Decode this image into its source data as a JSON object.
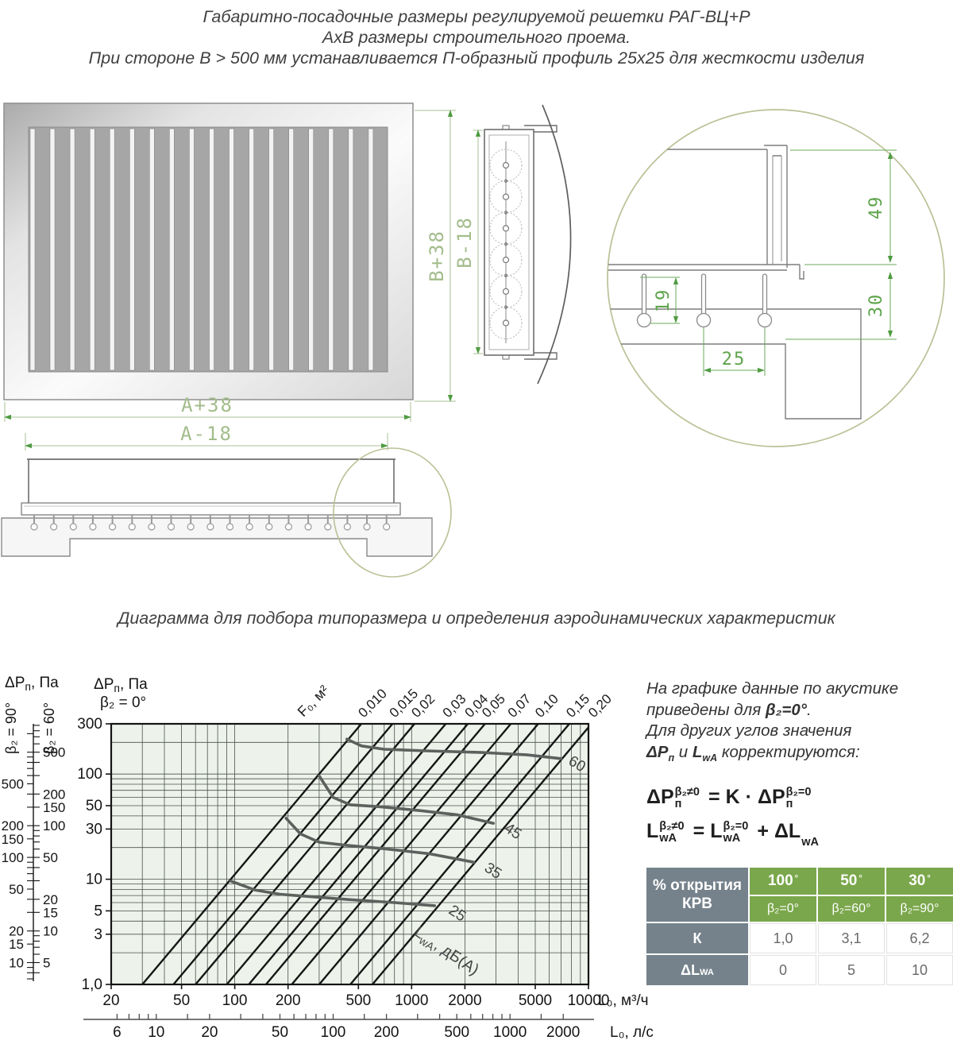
{
  "header": {
    "line1": "Габаритно-посадочные размеры регулируемой решетки РАГ-ВЦ+Р",
    "line2": "АхВ размеры строительного проема.",
    "line3": "При стороне В > 500 мм устанавливается П-образный профиль 25х25 для жесткости изделия"
  },
  "section_title": "Диаграмма для подбора типоразмера и определения аэродинамических характеристик",
  "drawings": {
    "slat_count": 18,
    "pin_count": 19,
    "gear_count": 6,
    "dims": {
      "a_outer": "A+38",
      "a_inner": "A-18",
      "b_outer": "B+38",
      "b_inner": "B-18",
      "detail_49": "49",
      "detail_30": "30",
      "detail_19": "19",
      "detail_25": "25"
    }
  },
  "chart_data": {
    "type": "line",
    "title": "Диаграмма для подбора типоразмера и определения аэродинамических характеристик",
    "background": "#edf3ea",
    "grid": {
      "vertical": "log multiples 20-10000",
      "horizontal": "log multiples 1-300",
      "color": "#4b504d"
    },
    "x_axis": {
      "label": "L₀, м³/ч",
      "scale": "log",
      "min": 20,
      "max": 10000,
      "ticks": [
        20,
        50,
        100,
        200,
        500,
        1000,
        2000,
        5000,
        10000
      ],
      "tick_labels": [
        "20",
        "50",
        "100",
        "200",
        "500",
        "1000",
        "2000",
        "5000",
        "10000"
      ]
    },
    "x_axis_secondary": {
      "label": "L₀, л/с",
      "scale": "log",
      "unit_factor": 3.6,
      "ticks": [
        6,
        10,
        20,
        50,
        100,
        200,
        500,
        1000,
        2000
      ],
      "tick_labels": [
        "6",
        "10",
        "20",
        "50",
        "100",
        "200",
        "500",
        "1000",
        "2000"
      ],
      "minor_ticks": [
        6,
        7,
        8,
        9,
        10,
        15,
        20,
        30,
        40,
        50,
        60,
        70,
        80,
        90,
        100,
        150,
        200,
        300,
        400,
        500,
        600,
        700,
        800,
        900,
        1000,
        1500,
        2000
      ]
    },
    "y_axis": {
      "label_base": "ΔP",
      "label_sub": "п",
      "label_unit": ", Па",
      "sublabel": "β₂ = 0°",
      "scale": "log",
      "min": 1,
      "max": 300,
      "ticks": [
        1,
        3,
        5,
        10,
        30,
        50,
        100,
        300
      ],
      "tick_labels": [
        "1,0",
        "3",
        "5",
        "10",
        "30",
        "50",
        "100",
        "300"
      ]
    },
    "aux_header": {
      "base": "ΔP",
      "sub": "п",
      "unit": ", Па"
    },
    "aux_scales": [
      {
        "label": "β₂ = 90°",
        "factor": 6.2,
        "labeled_ticks": [
          500,
          200,
          150,
          100,
          50,
          20,
          15,
          10
        ],
        "minor_ticks": [
          7,
          8,
          9,
          10,
          15,
          20,
          30,
          40,
          50,
          60,
          70,
          80,
          90,
          100,
          150,
          200,
          300,
          400,
          500,
          600,
          700,
          800,
          900,
          1000,
          1500
        ]
      },
      {
        "label": "β₂ = 60°",
        "factor": 3.1,
        "labeled_ticks": [
          500,
          200,
          150,
          100,
          50,
          20,
          15,
          10,
          5
        ],
        "minor_ticks": [
          4,
          5,
          6,
          7,
          8,
          9,
          10,
          15,
          20,
          30,
          40,
          50,
          60,
          70,
          80,
          90,
          100,
          150,
          200,
          300,
          400,
          500,
          600,
          700,
          800,
          900
        ]
      }
    ],
    "f0_lines": {
      "axis_label": "F₀, м²",
      "values": [
        0.01,
        0.015,
        0.02,
        0.03,
        0.04,
        0.05,
        0.07,
        0.1,
        0.15,
        0.2
      ],
      "labels": [
        "0,010",
        "0,015",
        "0,02",
        "0,03",
        "0,04",
        "0,05",
        "0,07",
        "0,10",
        "0,15",
        "0,20"
      ],
      "relation": "ΔPп = (L₀ / (3000·F₀))²"
    },
    "noise_curves": {
      "label_base": "L",
      "label_sub": "wA",
      "label_unit": ", дБ(А)",
      "label_pos": [
        1020,
        3.0
      ],
      "label_angle": 34,
      "series": [
        {
          "name": "25",
          "points": [
            [
              95,
              9.6
            ],
            [
              130,
              7.9
            ],
            [
              180,
              7.2
            ],
            [
              280,
              6.8
            ],
            [
              450,
              6.4
            ],
            [
              800,
              6.0
            ],
            [
              1350,
              5.6
            ]
          ],
          "label_pos": [
            1600,
            4.8
          ],
          "label_angle": 33
        },
        {
          "name": "35",
          "points": [
            [
              195,
              38
            ],
            [
              235,
              27
            ],
            [
              300,
              22.5
            ],
            [
              430,
              21
            ],
            [
              700,
              19.5
            ],
            [
              1250,
              17.5
            ],
            [
              2250,
              14.5
            ]
          ],
          "label_pos": [
            2550,
            12.2
          ],
          "label_angle": 33
        },
        {
          "name": "45",
          "points": [
            [
              300,
              96
            ],
            [
              360,
              60
            ],
            [
              450,
              51
            ],
            [
              650,
              49
            ],
            [
              1100,
              45
            ],
            [
              1800,
              41
            ],
            [
              2900,
              34
            ]
          ],
          "label_pos": [
            3300,
            29
          ],
          "label_angle": 33
        },
        {
          "name": "60",
          "points": [
            [
              430,
              215
            ],
            [
              520,
              185
            ],
            [
              700,
              172
            ],
            [
              1200,
              166
            ],
            [
              2500,
              160
            ],
            [
              4500,
              152
            ],
            [
              7000,
              140
            ]
          ],
          "label_pos": [
            7600,
            125
          ],
          "label_angle": 30
        }
      ]
    }
  },
  "notes": {
    "line1": "На графике данные по акустике",
    "line2_pre": "приведены для ",
    "line2_sym": "β₂=0°",
    "line2_post": ".",
    "line3": "Для других углов значения",
    "line4_sym1_base": "ΔP",
    "line4_sym1_sub": "п",
    "line4_mid": " и ",
    "line4_sym2_base": "L",
    "line4_sym2_sub": "wA",
    "line4_post": " корректируются:"
  },
  "formulas": {
    "f1": {
      "base1": "ΔP",
      "sub1": "п",
      "sup1": "β₂≠0",
      "eq": "=",
      "k": "K",
      "dot": "·",
      "base2": "ΔP",
      "sub2": "п",
      "sup2": "β₂=0"
    },
    "f2": {
      "base1": "L",
      "sub1": "wA",
      "sup1": "β₂≠0",
      "eq": "=",
      "base2": "L",
      "sub2": "wA",
      "sup2": "β₂=0",
      "plus": "+",
      "base3": "ΔL",
      "sub3": "wA"
    }
  },
  "table": {
    "header": "% открытия КРВ",
    "columns": [
      {
        "angle": "100",
        "deg": "°",
        "beta": "β₂=0°"
      },
      {
        "angle": "50",
        "deg": "°",
        "beta": "β₂=60°"
      },
      {
        "angle": "30",
        "deg": "°",
        "beta": "β₂=90°"
      }
    ],
    "rows": [
      {
        "label": "К",
        "values": [
          "1,0",
          "3,1",
          "6,2"
        ]
      },
      {
        "label_base": "ΔL",
        "label_sub": "WA",
        "values": [
          "0",
          "5",
          "10"
        ]
      }
    ],
    "colors": {
      "header_bg": "#75828b",
      "accent_bg": "#7aa74b"
    }
  }
}
